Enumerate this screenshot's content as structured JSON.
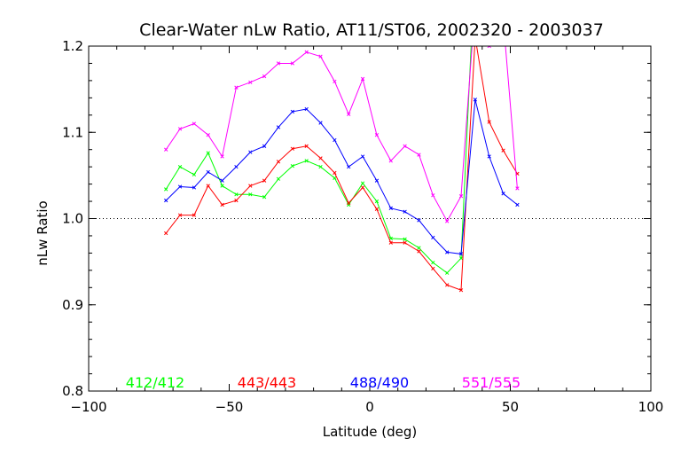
{
  "chart_data": {
    "type": "line",
    "title": "Clear-Water nLw Ratio, AT11/ST06, 2002320 - 2003037",
    "xlabel": "Latitude (deg)",
    "ylabel": "nLw Ratio",
    "xlim": [
      -100,
      100
    ],
    "ylim": [
      0.8,
      1.2
    ],
    "xticks": [
      -100,
      -50,
      0,
      50,
      100
    ],
    "yticks": [
      0.8,
      0.9,
      1.0,
      1.1,
      1.2
    ],
    "xtick_labels": [
      "−100",
      "−50",
      "0",
      "50",
      "100"
    ],
    "ytick_labels": [
      "0.8",
      "0.9",
      "1.0",
      "1.1",
      "1.2"
    ],
    "reference_line": 1.0,
    "x": [
      -72.5,
      -67.5,
      -62.5,
      -57.5,
      -52.5,
      -47.5,
      -42.5,
      -37.5,
      -32.5,
      -27.5,
      -22.5,
      -17.5,
      -12.5,
      -7.5,
      -2.5,
      2.5,
      7.5,
      12.5,
      17.5,
      22.5,
      27.5,
      32.5,
      37.5,
      42.5,
      47.5,
      52.5
    ],
    "series": [
      {
        "name": "412/412",
        "color": "#00ff00",
        "values": [
          1.034,
          1.06,
          1.051,
          1.076,
          1.038,
          1.028,
          1.028,
          1.025,
          1.046,
          1.061,
          1.067,
          1.06,
          1.047,
          1.016,
          1.041,
          1.02,
          0.977,
          0.976,
          0.966,
          0.949,
          0.937,
          0.954,
          1.3,
          null,
          null,
          null
        ]
      },
      {
        "name": "443/443",
        "color": "#ff0000",
        "values": [
          0.983,
          1.004,
          1.004,
          1.038,
          1.016,
          1.021,
          1.038,
          1.044,
          1.066,
          1.081,
          1.084,
          1.07,
          1.053,
          1.018,
          1.036,
          1.011,
          0.972,
          0.972,
          0.962,
          0.942,
          0.923,
          0.917,
          1.21,
          1.112,
          1.079,
          1.052
        ]
      },
      {
        "name": "488/490",
        "color": "#0000ff",
        "values": [
          1.021,
          1.037,
          1.036,
          1.054,
          1.044,
          1.06,
          1.077,
          1.084,
          1.106,
          1.124,
          1.127,
          1.111,
          1.091,
          1.06,
          1.072,
          1.044,
          1.012,
          1.008,
          0.998,
          0.978,
          0.961,
          0.959,
          1.138,
          1.072,
          1.029,
          1.016
        ]
      },
      {
        "name": "551/555",
        "color": "#ff00ff",
        "values": [
          1.08,
          1.104,
          1.11,
          1.097,
          1.072,
          1.152,
          1.158,
          1.165,
          1.18,
          1.18,
          1.193,
          1.188,
          1.159,
          1.121,
          1.162,
          1.097,
          1.067,
          1.084,
          1.074,
          1.027,
          0.997,
          1.026,
          1.25,
          1.2,
          1.23,
          1.035
        ]
      }
    ],
    "grid": false,
    "legend_position": "bottom"
  }
}
